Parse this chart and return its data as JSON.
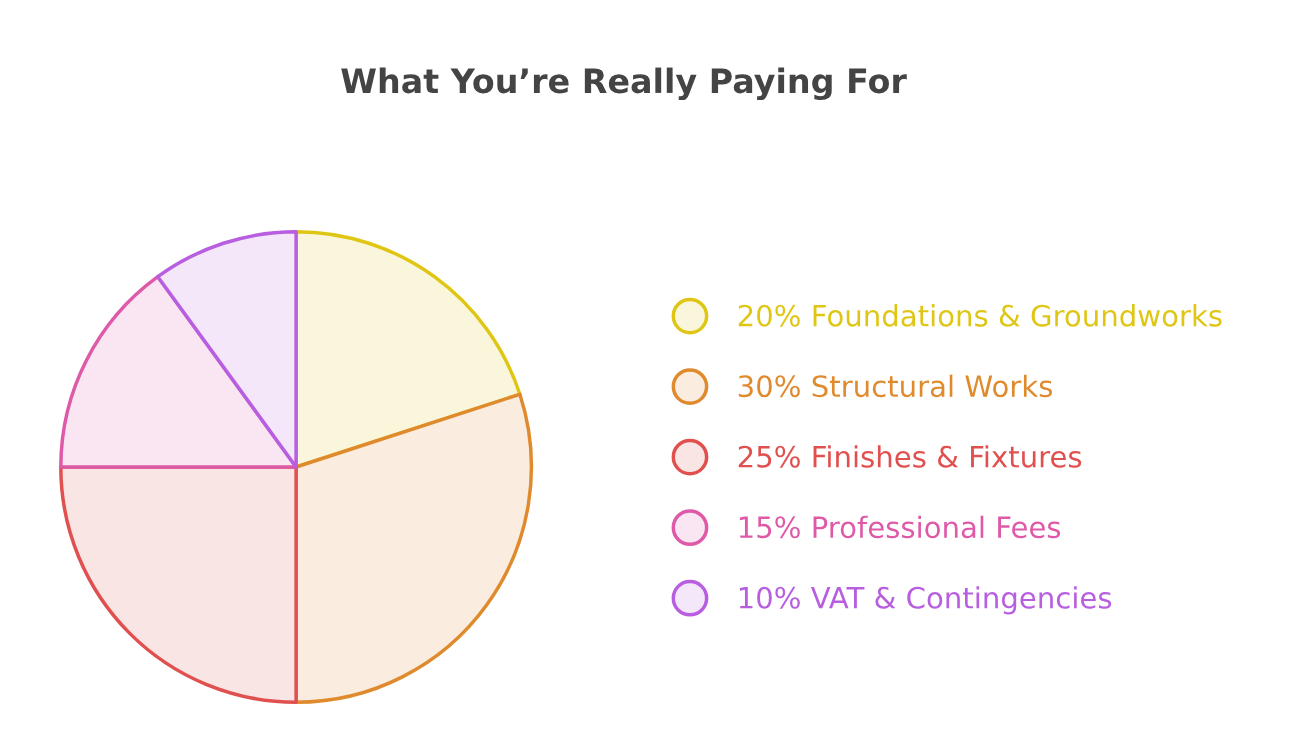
{
  "chart_data": {
    "type": "pie",
    "title": "What You’re Really Paying For",
    "categories": [
      "20% Foundations & Groundworks",
      "30% Structural Works",
      "25% Finishes & Fixtures",
      "15% Professional Fees",
      "10% VAT & Contingencies"
    ],
    "values": [
      20,
      30,
      25,
      15,
      10
    ],
    "colors": [
      "#e0c614",
      "#e08a2e",
      "#e0504f",
      "#de5aa8",
      "#b85ee0"
    ],
    "legend": "right"
  }
}
